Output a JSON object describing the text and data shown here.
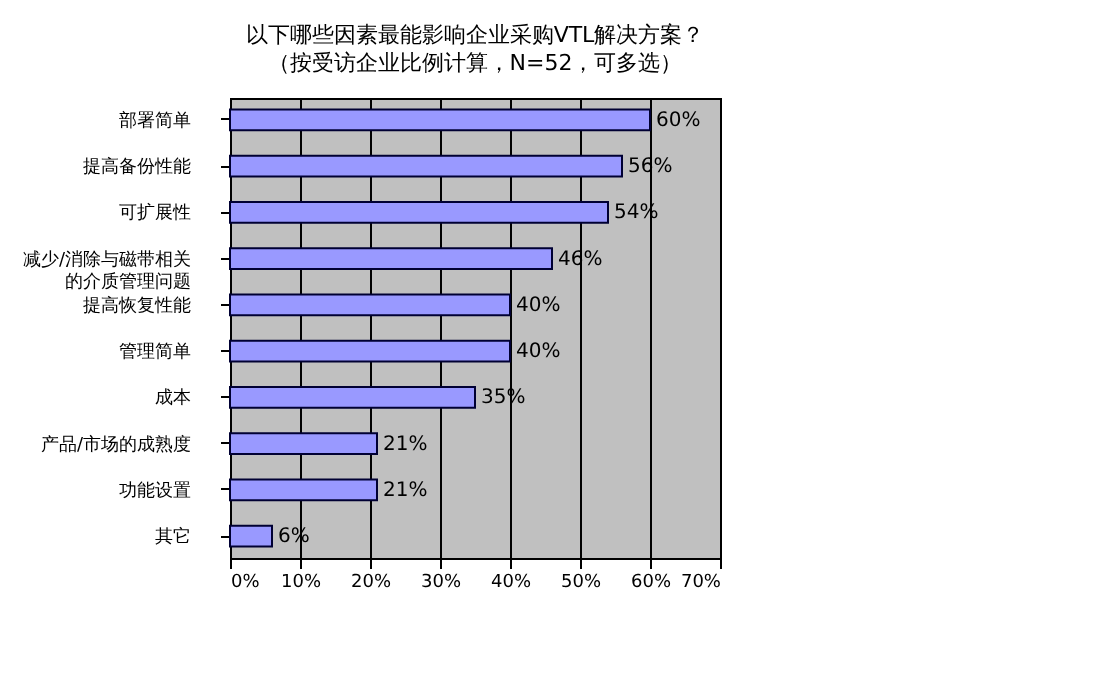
{
  "chart_data": {
    "type": "bar",
    "orientation": "horizontal",
    "title": "以下哪些因素最能影响企业采购VTL解决方案？",
    "subtitle": "（按受访企业比例计算，N=52，可多选）",
    "categories": [
      "部署简单",
      "提高备份性能",
      "可扩展性",
      "减少/消除与磁带相关的介质管理问题",
      "提高恢复性能",
      "管理简单",
      "成本",
      "产品/市场的成熟度",
      "功能设置",
      "其它"
    ],
    "values": [
      60,
      56,
      54,
      46,
      40,
      40,
      35,
      21,
      21,
      6
    ],
    "value_labels": [
      "60%",
      "56%",
      "54%",
      "46%",
      "40%",
      "40%",
      "35%",
      "21%",
      "21%",
      "6%"
    ],
    "color": "#9999ff",
    "xlim": [
      0,
      70
    ],
    "xticks": [
      {
        "value": 0,
        "label": "0%"
      },
      {
        "value": 10,
        "label": "10%"
      },
      {
        "value": 20,
        "label": "20%"
      },
      {
        "value": 30,
        "label": "30%"
      },
      {
        "value": 40,
        "label": "40%"
      },
      {
        "value": 50,
        "label": "50%"
      },
      {
        "value": 60,
        "label": "60%"
      },
      {
        "value": 70,
        "label": "70%"
      }
    ],
    "grid": "x"
  }
}
